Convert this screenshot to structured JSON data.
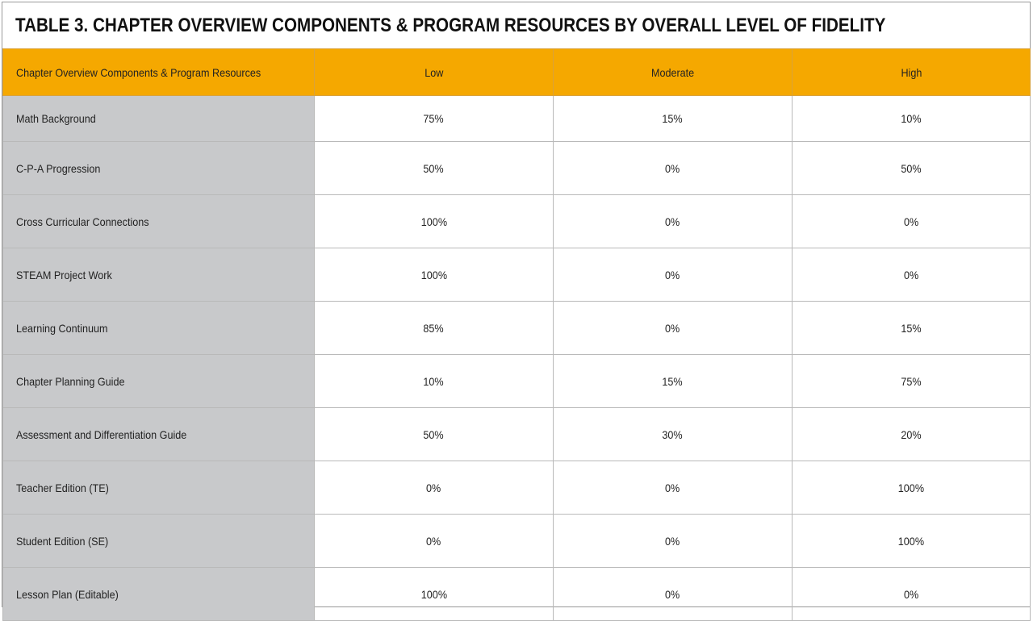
{
  "title": "TABLE 3. CHAPTER OVERVIEW COMPONENTS & PROGRAM RESOURCES BY OVERALL LEVEL OF FIDELITY",
  "colors": {
    "header_bg": "#f5a800",
    "row_header_bg": "#c8c9cb",
    "border": "#b9b9b9"
  },
  "chart_data": {
    "type": "table",
    "title": "TABLE 3. CHAPTER OVERVIEW COMPONENTS & PROGRAM RESOURCES BY OVERALL LEVEL OF FIDELITY",
    "columns": [
      "Chapter Overview Components & Program Resources",
      "Low",
      "Moderate",
      "High"
    ],
    "rows": [
      {
        "label": "Math Background",
        "low": "75%",
        "moderate": "15%",
        "high": "10%"
      },
      {
        "label": "C-P-A Progression",
        "low": "50%",
        "moderate": "0%",
        "high": "50%"
      },
      {
        "label": "Cross Curricular Connections",
        "low": "100%",
        "moderate": "0%",
        "high": "0%"
      },
      {
        "label": "STEAM Project Work",
        "low": "100%",
        "moderate": "0%",
        "high": "0%"
      },
      {
        "label": "Learning Continuum",
        "low": "85%",
        "moderate": "0%",
        "high": "15%"
      },
      {
        "label": "Chapter Planning Guide",
        "low": "10%",
        "moderate": "15%",
        "high": "75%"
      },
      {
        "label": "Assessment and Differentiation Guide",
        "low": "50%",
        "moderate": "30%",
        "high": "20%"
      },
      {
        "label": "Teacher Edition (TE)",
        "low": "0%",
        "moderate": "0%",
        "high": "100%"
      },
      {
        "label": "Student Edition (SE)",
        "low": "0%",
        "moderate": "0%",
        "high": "100%"
      },
      {
        "label": "Lesson Plan (Editable)",
        "low": "100%",
        "moderate": "0%",
        "high": "0%"
      }
    ]
  }
}
